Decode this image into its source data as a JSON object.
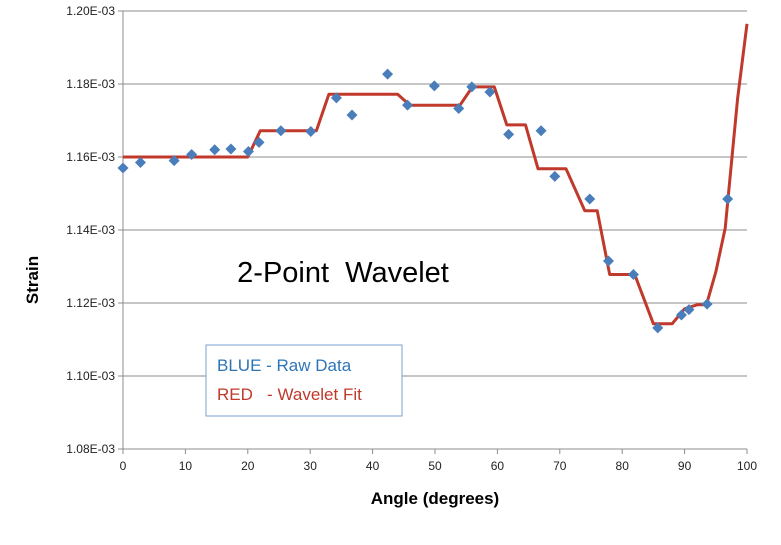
{
  "chart_data": {
    "type": "line",
    "title": "2-Point  Wavelet",
    "xlabel": "Angle (degrees)",
    "ylabel": "Strain",
    "xlim": [
      0,
      100
    ],
    "ylim": [
      0.00108,
      0.0012
    ],
    "x_ticks": [
      0,
      10,
      20,
      30,
      40,
      50,
      60,
      70,
      80,
      90,
      100
    ],
    "x_tick_labels": [
      "0",
      "10",
      "20",
      "30",
      "40",
      "50",
      "60",
      "70",
      "80",
      "90",
      "100"
    ],
    "y_ticks": [
      0.00108,
      0.0011,
      0.00112,
      0.00114,
      0.00116,
      0.00118,
      0.0012
    ],
    "y_tick_labels": [
      "1.08E-03",
      "1.10E-03",
      "1.12E-03",
      "1.14E-03",
      "1.16E-03",
      "1.18E-03",
      "1.20E-03"
    ],
    "grid": {
      "horizontal": true,
      "vertical": false
    },
    "legend": {
      "position": "bottom-left",
      "entries": [
        {
          "label": "BLUE - Raw Data",
          "color": "#2e75b6"
        },
        {
          "label": "RED   - Wavelet Fit",
          "color": "#c0392b"
        }
      ]
    },
    "series": [
      {
        "kind": "scatter",
        "marker": "diamond",
        "color": "#4a7ebb",
        "x": [
          0,
          2.8,
          8.2,
          11,
          14.7,
          17.3,
          20.1,
          21.8,
          25.3,
          30.1,
          34.2,
          36.7,
          42.4,
          45.6,
          49.9,
          53.8,
          55.9,
          58.8,
          61.8,
          67,
          69.2,
          74.8,
          77.8,
          81.8,
          85.7,
          89.5,
          90.7,
          93.6,
          96.9
        ],
        "y": [
          0.001157,
          0.0011585,
          0.001159,
          0.0011607,
          0.001162,
          0.0011622,
          0.0011615,
          0.001164,
          0.0011672,
          0.001167,
          0.0011762,
          0.0011715,
          0.0011827,
          0.0011742,
          0.0011795,
          0.0011733,
          0.0011792,
          0.0011778,
          0.0011662,
          0.0011672,
          0.0011547,
          0.0011485,
          0.0011315,
          0.0011278,
          0.0011132,
          0.0011167,
          0.0011182,
          0.0011197,
          0.0011485
        ]
      },
      {
        "kind": "line",
        "color": "#c0392b",
        "x": [
          0,
          20,
          22,
          31,
          33,
          44,
          46,
          54,
          56,
          59.5,
          61.5,
          64.5,
          66.5,
          69.5,
          71,
          74,
          76,
          78,
          80,
          82,
          85,
          88,
          90,
          92,
          93.5,
          95,
          96.5,
          98.5,
          100
        ],
        "y": [
          0.00116,
          0.00116,
          0.0011672,
          0.0011672,
          0.0011772,
          0.0011772,
          0.0011742,
          0.0011742,
          0.0011792,
          0.0011792,
          0.0011688,
          0.0011688,
          0.0011568,
          0.0011568,
          0.0011568,
          0.0011453,
          0.0011453,
          0.0011278,
          0.0011278,
          0.0011278,
          0.0011143,
          0.0011143,
          0.0011184,
          0.0011195,
          0.0011195,
          0.0011285,
          0.0011405,
          0.001176,
          0.0011965
        ]
      }
    ]
  }
}
